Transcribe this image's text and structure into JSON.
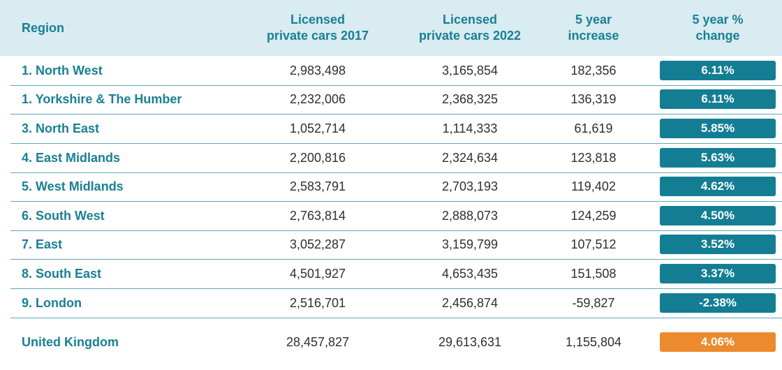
{
  "accent_color": "#1a7f95",
  "header_bg_color": "#d8ecf1",
  "badge_color": "#137e93",
  "total_badge_color": "#ec8a2d",
  "chart_data": {
    "type": "table",
    "columns": [
      "Region",
      "Licensed\nprivate cars 2017",
      "Licensed\nprivate cars 2022",
      "5 year\nincrease",
      "5 year %\nchange"
    ],
    "rows": [
      {
        "region": "1. North West",
        "cars_2017": "2,983,498",
        "cars_2022": "3,165,854",
        "increase": "182,356",
        "change": "6.11%"
      },
      {
        "region": "1. Yorkshire & The Humber",
        "cars_2017": "2,232,006",
        "cars_2022": "2,368,325",
        "increase": "136,319",
        "change": "6.11%"
      },
      {
        "region": "3. North East",
        "cars_2017": "1,052,714",
        "cars_2022": "1,114,333",
        "increase": "61,619",
        "change": "5.85%"
      },
      {
        "region": "4. East Midlands",
        "cars_2017": "2,200,816",
        "cars_2022": "2,324,634",
        "increase": "123,818",
        "change": "5.63%"
      },
      {
        "region": "5. West Midlands",
        "cars_2017": "2,583,791",
        "cars_2022": "2,703,193",
        "increase": "119,402",
        "change": "4.62%"
      },
      {
        "region": "6. South West",
        "cars_2017": "2,763,814",
        "cars_2022": "2,888,073",
        "increase": "124,259",
        "change": "4.50%"
      },
      {
        "region": "7. East",
        "cars_2017": "3,052,287",
        "cars_2022": "3,159,799",
        "increase": "107,512",
        "change": "3.52%"
      },
      {
        "region": "8. South East",
        "cars_2017": "4,501,927",
        "cars_2022": "4,653,435",
        "increase": "151,508",
        "change": "3.37%"
      },
      {
        "region": "9. London",
        "cars_2017": "2,516,701",
        "cars_2022": "2,456,874",
        "increase": "-59,827",
        "change": "-2.38%"
      }
    ],
    "total": {
      "region": "United Kingdom",
      "cars_2017": "28,457,827",
      "cars_2022": "29,613,631",
      "increase": "1,155,804",
      "change": "4.06%"
    }
  }
}
